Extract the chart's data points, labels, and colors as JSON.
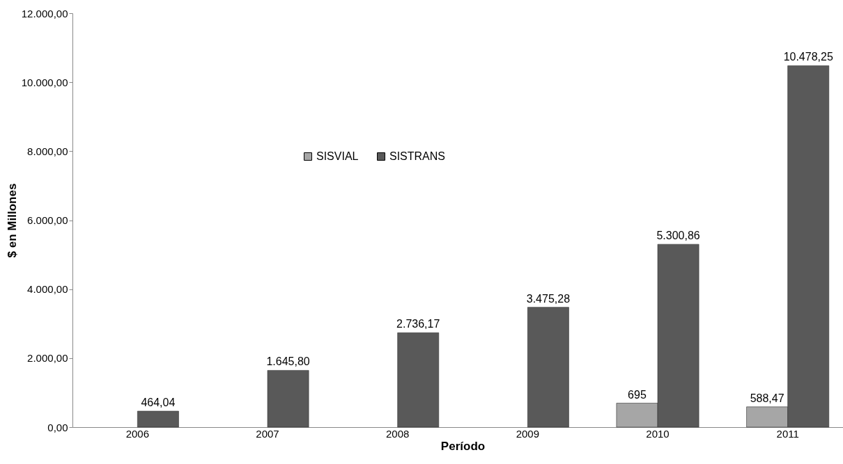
{
  "chart_data": {
    "type": "bar",
    "xlabel": "Período",
    "ylabel": "$ en Millones",
    "categories": [
      "2006",
      "2007",
      "2008",
      "2009",
      "2010",
      "2011"
    ],
    "series": [
      {
        "name": "SISVIAL",
        "color": "#a6a6a6",
        "values": [
          null,
          null,
          null,
          null,
          695,
          588.47
        ],
        "value_labels": [
          null,
          null,
          null,
          null,
          "695",
          "588,47"
        ]
      },
      {
        "name": "SISTRANS",
        "color": "#595959",
        "values": [
          464.04,
          1645.8,
          2736.17,
          3475.28,
          5300.86,
          10478.25
        ],
        "value_labels": [
          "464,04",
          "1.645,80",
          "2.736,17",
          "3.475,28",
          "5.300,86",
          "10.478,25"
        ]
      }
    ],
    "ylim": [
      0,
      12000
    ],
    "yticks": [
      {
        "value": 0,
        "label": "0,00"
      },
      {
        "value": 2000,
        "label": "2.000,00"
      },
      {
        "value": 4000,
        "label": "4.000,00"
      },
      {
        "value": 6000,
        "label": "6.000,00"
      },
      {
        "value": 8000,
        "label": "8.000,00"
      },
      {
        "value": 10000,
        "label": "10.000,00"
      },
      {
        "value": 12000,
        "label": "12.000,00"
      }
    ],
    "grid": false,
    "legend": "top left"
  }
}
